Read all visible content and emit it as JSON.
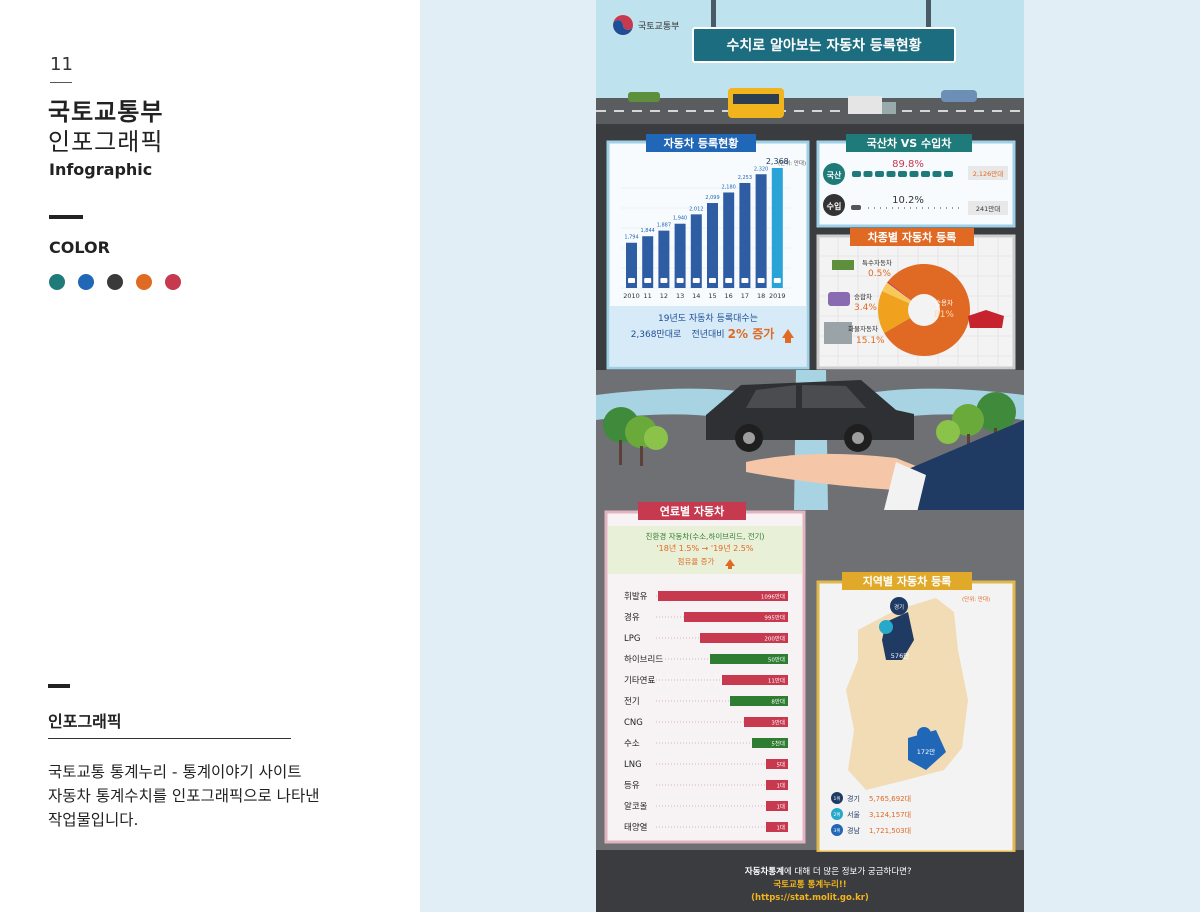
{
  "left": {
    "number": "11",
    "title1": "국토교통부",
    "title2": "인포그래픽",
    "title3": "Infographic",
    "color_label": "COLOR",
    "colors": [
      "#1e7b7a",
      "#2167b8",
      "#3a3a3a",
      "#e06a24",
      "#c6394e"
    ],
    "section_title": "인포그래픽",
    "desc_line1": "국토교통 통계누리 - 통계이야기 사이트",
    "desc_line2": "자동차 통계수치를 인포그래픽으로 나타낸",
    "desc_line3": "작업물입니다."
  },
  "poster": {
    "ministry": "국토교통부",
    "main_title": "수치로 알아보는 자동차 등록현황",
    "reg": {
      "title": "자동차 등록현황",
      "unit": "(단위: 만대)",
      "years": [
        "2010",
        "11",
        "12",
        "13",
        "14",
        "15",
        "16",
        "17",
        "18",
        "2019"
      ],
      "values": [
        1794,
        1844,
        1887,
        1940,
        2012,
        2099,
        2180,
        2253,
        2320,
        2368
      ],
      "labels": [
        "1,794",
        "1,844",
        "1,887",
        "1,940",
        "2,012",
        "2,099",
        "2,180",
        "2,253",
        "2,320",
        "2,368"
      ],
      "note1": "19년도 자동차 등록대수는",
      "note2a": "2,368만대로",
      "note2b": "전년대비",
      "note2c": "2% 증가"
    },
    "dom": {
      "title": "국산차 VS 수입차",
      "dom_label": "국산",
      "dom_pct": "89.8%",
      "dom_val": "2,126만대",
      "imp_label": "수입",
      "imp_pct": "10.2%",
      "imp_val": "241만대"
    },
    "type": {
      "title": "차종별 자동차 등록",
      "special": "특수자동차",
      "special_pct": "0.5%",
      "van": "승합차",
      "van_pct": "3.4%",
      "truck": "화물자동차",
      "truck_pct": "15.1%",
      "car": "승용차",
      "car_pct": "81%",
      "slices": [
        81,
        15.1,
        3.4,
        0.5
      ]
    },
    "fuel": {
      "title": "연료별 자동차",
      "eco1": "친환경 자동차(수소,하이브리드, 전기)",
      "eco2": "'18년 1.5% → '19년 2.5%",
      "eco3": "점유율 증가",
      "items": [
        {
          "name": "휘발유",
          "value": "1096만대",
          "color": "#c6394e",
          "w": 130
        },
        {
          "name": "경유",
          "value": "995만대",
          "color": "#c6394e",
          "w": 104
        },
        {
          "name": "LPG",
          "value": "200만대",
          "color": "#c6394e",
          "w": 88
        },
        {
          "name": "하이브리드",
          "value": "50만대",
          "color": "#2e7d32",
          "w": 78
        },
        {
          "name": "기타연료",
          "value": "11만대",
          "color": "#c6394e",
          "w": 66
        },
        {
          "name": "전기",
          "value": "8만대",
          "color": "#2e7d32",
          "w": 58
        },
        {
          "name": "CNG",
          "value": "3만대",
          "color": "#c6394e",
          "w": 44
        },
        {
          "name": "수소",
          "value": "5천대",
          "color": "#2e7d32",
          "w": 36
        },
        {
          "name": "LNG",
          "value": "5대",
          "color": "#c6394e",
          "w": 22
        },
        {
          "name": "등유",
          "value": "1대",
          "color": "#c6394e",
          "w": 22
        },
        {
          "name": "알코올",
          "value": "1대",
          "color": "#c6394e",
          "w": 22
        },
        {
          "name": "태양열",
          "value": "1대",
          "color": "#c6394e",
          "w": 22
        }
      ]
    },
    "region": {
      "title": "지역별 자동차 등록",
      "unit": "(단위: 만대)",
      "gyeonggi": "경기",
      "gyeonggi_val": "576만",
      "gyeongnam_val": "172만",
      "rank": [
        {
          "n": "1위",
          "name": "경기",
          "val": "5,765,692대"
        },
        {
          "n": "2위",
          "name": "서울",
          "val": "3,124,157대"
        },
        {
          "n": "3위",
          "name": "경남",
          "val": "1,721,503대"
        }
      ]
    },
    "footer1a": "자동차통계",
    "footer1b": "에 대해 더 많은 정보가 궁금하다면?",
    "footer2": "국토교통 통계누리!!",
    "footer3": "(https://stat.molit.go.kr)"
  }
}
